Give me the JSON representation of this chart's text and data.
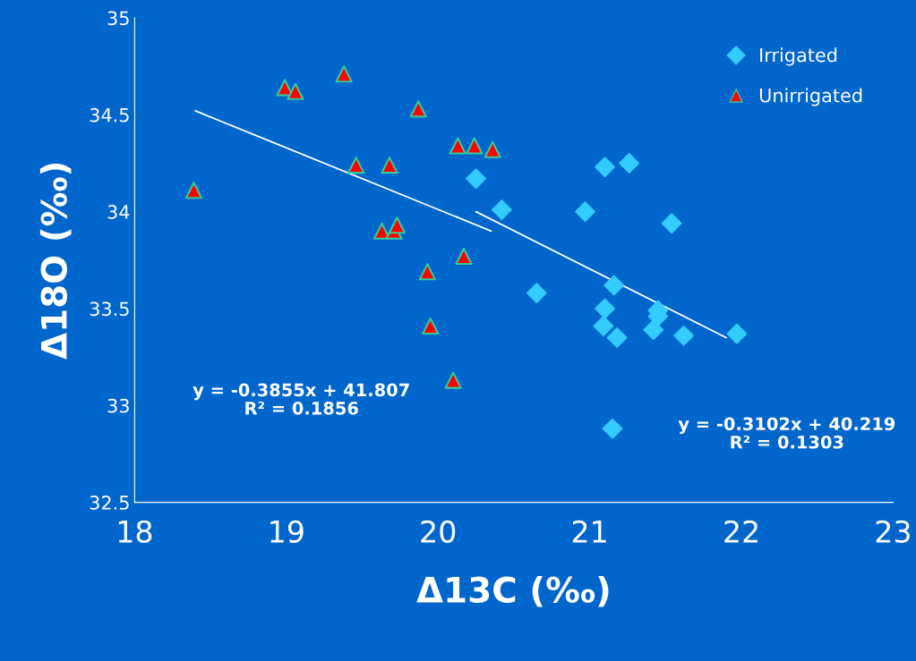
{
  "chart_data": {
    "type": "scatter",
    "xlabel": "Δ13C (‰)",
    "ylabel": "Δ18O (‰)",
    "xlim": [
      18,
      23
    ],
    "xticks": [
      18,
      19,
      20,
      21,
      22,
      23
    ],
    "ylim": [
      32.5,
      35
    ],
    "yticks": [
      32.5,
      33,
      33.5,
      34,
      34.5,
      35
    ],
    "grid": false,
    "legend": "top right",
    "series": [
      {
        "name": "Irrigated",
        "marker": "diamond",
        "color": "#33ccff",
        "x": [
          20.25,
          20.42,
          20.97,
          21.1,
          21.26,
          21.54,
          20.65,
          21.16,
          21.1,
          21.09,
          21.18,
          21.45,
          21.45,
          21.42,
          21.62,
          21.97,
          21.15
        ],
        "values": [
          34.17,
          34.01,
          34.0,
          34.23,
          34.25,
          33.94,
          33.58,
          33.62,
          33.5,
          33.41,
          33.35,
          33.49,
          33.46,
          33.39,
          33.36,
          33.37,
          32.88
        ]
      },
      {
        "name": "Unirrigated",
        "marker": "triangle",
        "color": "#ff0000",
        "x": [
          18.39,
          18.99,
          19.06,
          19.38,
          19.87,
          19.46,
          19.68,
          20.13,
          20.24,
          20.36,
          19.63,
          19.71,
          19.73,
          20.17,
          19.93,
          19.95,
          20.1
        ],
        "values": [
          34.11,
          34.64,
          34.62,
          34.71,
          34.53,
          34.24,
          34.24,
          34.34,
          34.34,
          34.32,
          33.9,
          33.9,
          33.93,
          33.77,
          33.69,
          33.41,
          33.13
        ]
      },
      {
        "type": "line",
        "color": "#ffffff",
        "x": [
          18.4,
          20.35
        ],
        "values": [
          34.52,
          33.9
        ]
      },
      {
        "type": "line",
        "color": "#ffffff",
        "x": [
          20.25,
          21.9
        ],
        "values": [
          34.0,
          33.35
        ]
      }
    ],
    "annotations": [
      "y = -0.3855x + 41.807\nR² = 0.1856",
      "y = -0.3102x + 40.219\nR² = 0.1303"
    ]
  }
}
